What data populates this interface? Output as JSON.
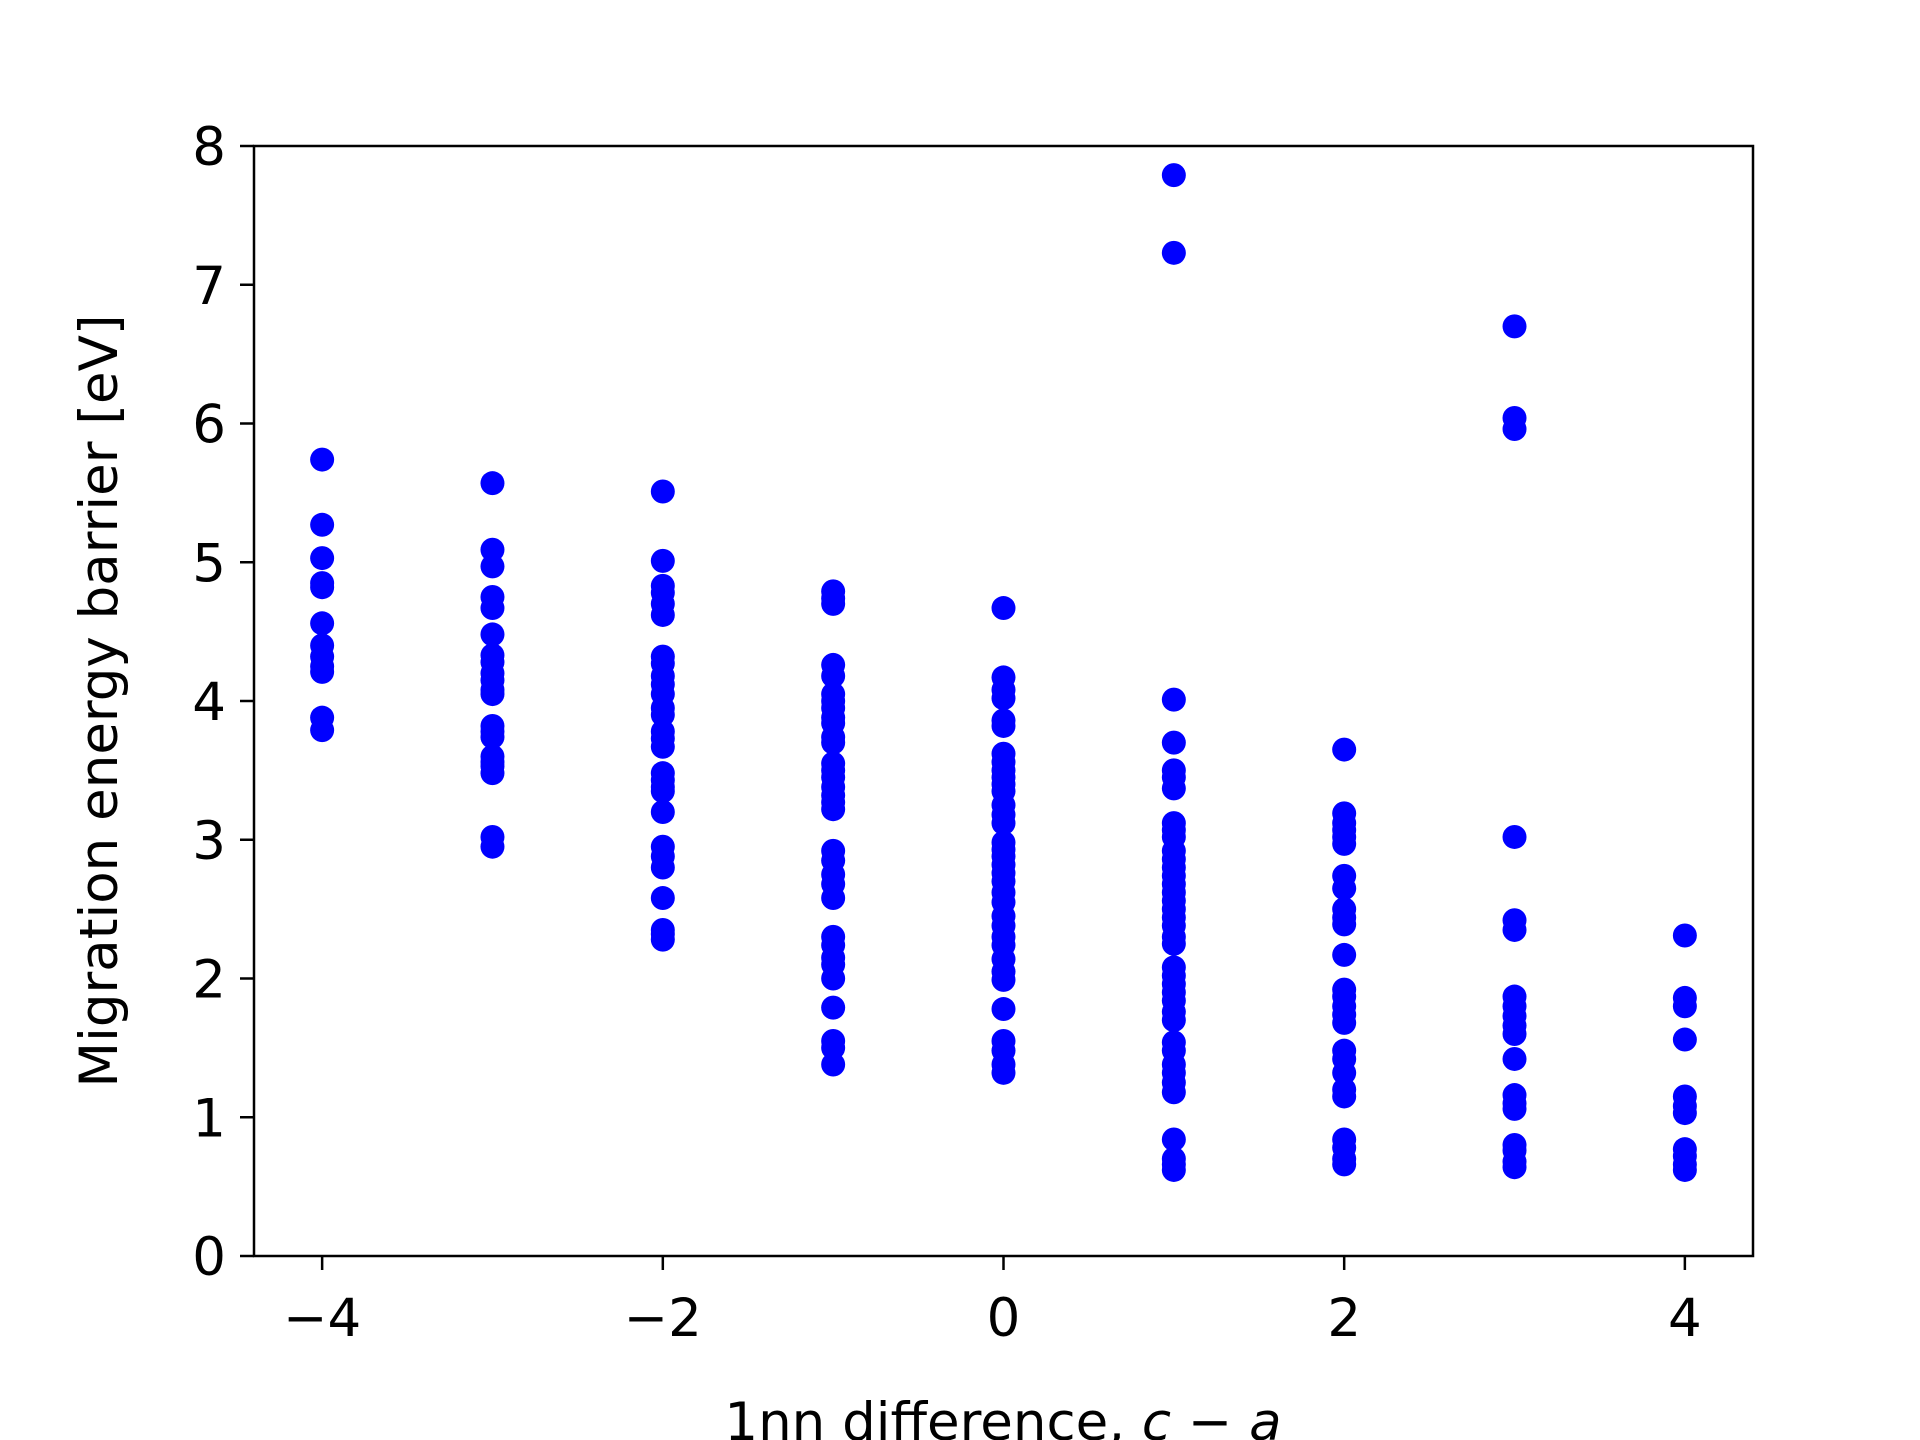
{
  "chart_data": {
    "type": "scatter",
    "title": "",
    "xlabel": {
      "prefix": "1nn difference, ",
      "var1": "c",
      "op": " − ",
      "var2": "a"
    },
    "ylabel": "Migration energy barrier [eV]",
    "xlim": [
      -4.4,
      4.4
    ],
    "ylim": [
      0,
      8
    ],
    "xticks": [
      -4,
      -2,
      0,
      2,
      4
    ],
    "xtick_labels": [
      "−4",
      "−2",
      "0",
      "2",
      "4"
    ],
    "yticks": [
      0,
      1,
      2,
      3,
      4,
      5,
      6,
      7,
      8
    ],
    "ytick_labels": [
      "0",
      "1",
      "2",
      "3",
      "4",
      "5",
      "6",
      "7",
      "8"
    ],
    "grid": false,
    "legend": "none",
    "marker_color": "#0000ff",
    "series": [
      {
        "points": [
          [
            -4,
            5.74
          ],
          [
            -4,
            5.27
          ],
          [
            -4,
            5.03
          ],
          [
            -4,
            4.85
          ],
          [
            -4,
            4.82
          ],
          [
            -4,
            4.56
          ],
          [
            -4,
            4.4
          ],
          [
            -4,
            4.32
          ],
          [
            -4,
            4.25
          ],
          [
            -4,
            4.21
          ],
          [
            -4,
            3.88
          ],
          [
            -4,
            3.79
          ],
          [
            -3,
            5.57
          ],
          [
            -3,
            5.09
          ],
          [
            -3,
            4.97
          ],
          [
            -3,
            4.75
          ],
          [
            -3,
            4.67
          ],
          [
            -3,
            4.48
          ],
          [
            -3,
            4.33
          ],
          [
            -3,
            4.28
          ],
          [
            -3,
            4.2
          ],
          [
            -3,
            4.15
          ],
          [
            -3,
            4.08
          ],
          [
            -3,
            4.05
          ],
          [
            -3,
            3.82
          ],
          [
            -3,
            3.78
          ],
          [
            -3,
            3.74
          ],
          [
            -3,
            3.6
          ],
          [
            -3,
            3.56
          ],
          [
            -3,
            3.53
          ],
          [
            -3,
            3.48
          ],
          [
            -3,
            3.02
          ],
          [
            -3,
            2.95
          ],
          [
            -2,
            5.51
          ],
          [
            -2,
            5.01
          ],
          [
            -2,
            4.83
          ],
          [
            -2,
            4.78
          ],
          [
            -2,
            4.7
          ],
          [
            -2,
            4.62
          ],
          [
            -2,
            4.32
          ],
          [
            -2,
            4.27
          ],
          [
            -2,
            4.18
          ],
          [
            -2,
            4.12
          ],
          [
            -2,
            4.05
          ],
          [
            -2,
            3.95
          ],
          [
            -2,
            3.9
          ],
          [
            -2,
            3.78
          ],
          [
            -2,
            3.73
          ],
          [
            -2,
            3.67
          ],
          [
            -2,
            3.48
          ],
          [
            -2,
            3.43
          ],
          [
            -2,
            3.38
          ],
          [
            -2,
            3.35
          ],
          [
            -2,
            3.2
          ],
          [
            -2,
            2.95
          ],
          [
            -2,
            2.88
          ],
          [
            -2,
            2.8
          ],
          [
            -2,
            2.58
          ],
          [
            -2,
            2.35
          ],
          [
            -2,
            2.32
          ],
          [
            -2,
            2.28
          ],
          [
            -1,
            4.79
          ],
          [
            -1,
            4.74
          ],
          [
            -1,
            4.7
          ],
          [
            -1,
            4.26
          ],
          [
            -1,
            4.18
          ],
          [
            -1,
            4.05
          ],
          [
            -1,
            4.0
          ],
          [
            -1,
            3.95
          ],
          [
            -1,
            3.88
          ],
          [
            -1,
            3.84
          ],
          [
            -1,
            3.74
          ],
          [
            -1,
            3.7
          ],
          [
            -1,
            3.55
          ],
          [
            -1,
            3.5
          ],
          [
            -1,
            3.45
          ],
          [
            -1,
            3.38
          ],
          [
            -1,
            3.32
          ],
          [
            -1,
            3.27
          ],
          [
            -1,
            3.22
          ],
          [
            -1,
            2.92
          ],
          [
            -1,
            2.85
          ],
          [
            -1,
            2.75
          ],
          [
            -1,
            2.68
          ],
          [
            -1,
            2.58
          ],
          [
            -1,
            2.3
          ],
          [
            -1,
            2.24
          ],
          [
            -1,
            2.15
          ],
          [
            -1,
            2.1
          ],
          [
            -1,
            2.0
          ],
          [
            -1,
            1.79
          ],
          [
            -1,
            1.55
          ],
          [
            -1,
            1.5
          ],
          [
            -1,
            1.38
          ],
          [
            0,
            4.67
          ],
          [
            0,
            4.17
          ],
          [
            0,
            4.08
          ],
          [
            0,
            4.02
          ],
          [
            0,
            3.86
          ],
          [
            0,
            3.82
          ],
          [
            0,
            3.62
          ],
          [
            0,
            3.56
          ],
          [
            0,
            3.5
          ],
          [
            0,
            3.45
          ],
          [
            0,
            3.4
          ],
          [
            0,
            3.35
          ],
          [
            0,
            3.25
          ],
          [
            0,
            3.18
          ],
          [
            0,
            3.12
          ],
          [
            0,
            2.98
          ],
          [
            0,
            2.93
          ],
          [
            0,
            2.88
          ],
          [
            0,
            2.82
          ],
          [
            0,
            2.76
          ],
          [
            0,
            2.7
          ],
          [
            0,
            2.62
          ],
          [
            0,
            2.55
          ],
          [
            0,
            2.45
          ],
          [
            0,
            2.38
          ],
          [
            0,
            2.3
          ],
          [
            0,
            2.24
          ],
          [
            0,
            2.14
          ],
          [
            0,
            2.05
          ],
          [
            0,
            1.99
          ],
          [
            0,
            1.78
          ],
          [
            0,
            1.55
          ],
          [
            0,
            1.48
          ],
          [
            0,
            1.38
          ],
          [
            0,
            1.32
          ],
          [
            1,
            7.79
          ],
          [
            1,
            7.23
          ],
          [
            1,
            4.01
          ],
          [
            1,
            3.7
          ],
          [
            1,
            3.5
          ],
          [
            1,
            3.45
          ],
          [
            1,
            3.37
          ],
          [
            1,
            3.12
          ],
          [
            1,
            3.07
          ],
          [
            1,
            3.02
          ],
          [
            1,
            2.92
          ],
          [
            1,
            2.86
          ],
          [
            1,
            2.8
          ],
          [
            1,
            2.74
          ],
          [
            1,
            2.68
          ],
          [
            1,
            2.62
          ],
          [
            1,
            2.56
          ],
          [
            1,
            2.5
          ],
          [
            1,
            2.44
          ],
          [
            1,
            2.38
          ],
          [
            1,
            2.3
          ],
          [
            1,
            2.25
          ],
          [
            1,
            2.08
          ],
          [
            1,
            2.02
          ],
          [
            1,
            1.96
          ],
          [
            1,
            1.9
          ],
          [
            1,
            1.84
          ],
          [
            1,
            1.76
          ],
          [
            1,
            1.7
          ],
          [
            1,
            1.54
          ],
          [
            1,
            1.48
          ],
          [
            1,
            1.38
          ],
          [
            1,
            1.32
          ],
          [
            1,
            1.25
          ],
          [
            1,
            1.18
          ],
          [
            1,
            0.84
          ],
          [
            1,
            0.7
          ],
          [
            1,
            0.66
          ],
          [
            1,
            0.62
          ],
          [
            2,
            3.65
          ],
          [
            2,
            3.19
          ],
          [
            2,
            3.12
          ],
          [
            2,
            3.07
          ],
          [
            2,
            3.02
          ],
          [
            2,
            2.97
          ],
          [
            2,
            2.74
          ],
          [
            2,
            2.65
          ],
          [
            2,
            2.5
          ],
          [
            2,
            2.44
          ],
          [
            2,
            2.39
          ],
          [
            2,
            2.17
          ],
          [
            2,
            1.92
          ],
          [
            2,
            1.87
          ],
          [
            2,
            1.8
          ],
          [
            2,
            1.74
          ],
          [
            2,
            1.68
          ],
          [
            2,
            1.48
          ],
          [
            2,
            1.42
          ],
          [
            2,
            1.32
          ],
          [
            2,
            1.2
          ],
          [
            2,
            1.15
          ],
          [
            2,
            0.84
          ],
          [
            2,
            0.78
          ],
          [
            2,
            0.7
          ],
          [
            2,
            0.66
          ],
          [
            3,
            6.7
          ],
          [
            3,
            6.04
          ],
          [
            3,
            5.96
          ],
          [
            3,
            3.02
          ],
          [
            3,
            2.42
          ],
          [
            3,
            2.35
          ],
          [
            3,
            1.87
          ],
          [
            3,
            1.8
          ],
          [
            3,
            1.73
          ],
          [
            3,
            1.66
          ],
          [
            3,
            1.6
          ],
          [
            3,
            1.42
          ],
          [
            3,
            1.16
          ],
          [
            3,
            1.1
          ],
          [
            3,
            1.06
          ],
          [
            3,
            0.8
          ],
          [
            3,
            0.76
          ],
          [
            3,
            0.68
          ],
          [
            3,
            0.64
          ],
          [
            4,
            2.31
          ],
          [
            4,
            1.86
          ],
          [
            4,
            1.8
          ],
          [
            4,
            1.56
          ],
          [
            4,
            1.15
          ],
          [
            4,
            1.08
          ],
          [
            4,
            1.03
          ],
          [
            4,
            0.77
          ],
          [
            4,
            0.72
          ],
          [
            4,
            0.66
          ],
          [
            4,
            0.62
          ]
        ]
      }
    ]
  }
}
